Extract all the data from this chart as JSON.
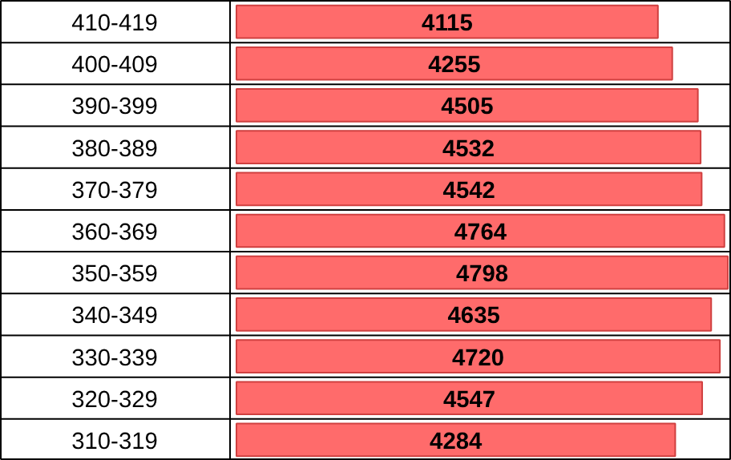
{
  "chart_data": {
    "type": "bar",
    "orientation": "horizontal",
    "categories": [
      "410-419",
      "400-409",
      "390-399",
      "380-389",
      "370-379",
      "360-369",
      "350-359",
      "340-349",
      "330-339",
      "320-329",
      "310-319"
    ],
    "values": [
      4115,
      4255,
      4505,
      4532,
      4542,
      4764,
      4798,
      4635,
      4720,
      4547,
      4284
    ],
    "color": "#ff6b6b",
    "data_labels": true
  }
}
